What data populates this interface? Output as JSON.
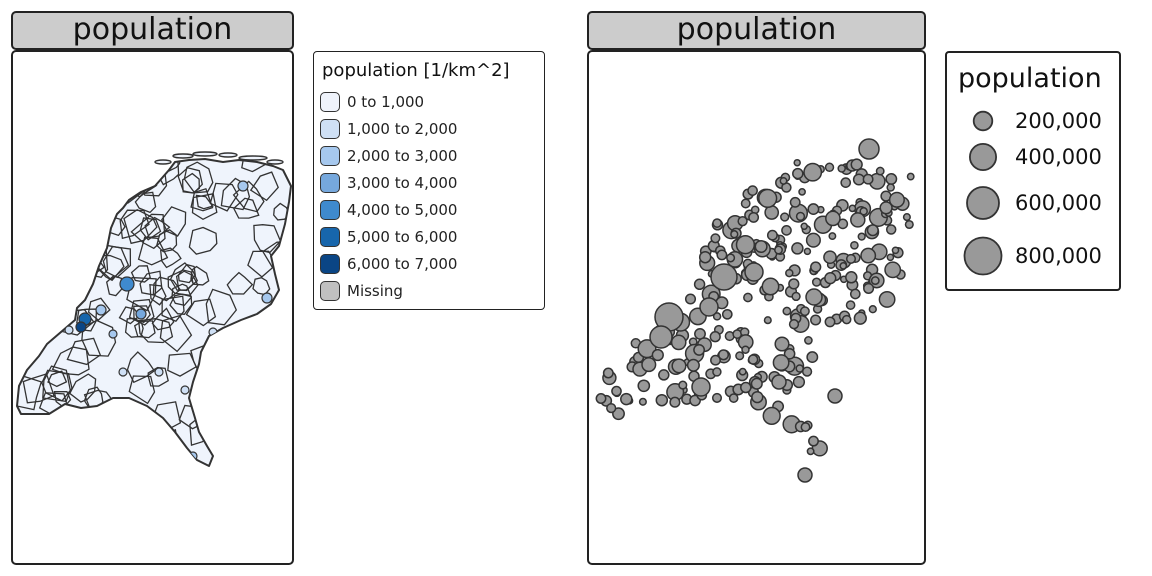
{
  "left_panel": {
    "title": "population",
    "fill_color": "#eff4fc",
    "border_color": "#333333"
  },
  "choropleth_legend": {
    "title": "population [1/km^2]",
    "items": [
      {
        "label": "0 to 1,000",
        "color": "#eff3fb"
      },
      {
        "label": "1,000 to 2,000",
        "color": "#cfe0f5"
      },
      {
        "label": "2,000 to 3,000",
        "color": "#a6c8ee"
      },
      {
        "label": "3,000 to 4,000",
        "color": "#76a8dd"
      },
      {
        "label": "4,000 to 5,000",
        "color": "#3f8ace"
      },
      {
        "label": "5,000 to 6,000",
        "color": "#1766ac"
      },
      {
        "label": "6,000 to 7,000",
        "color": "#0a4585"
      },
      {
        "label": "Missing",
        "color": "#c0c0c0"
      }
    ]
  },
  "right_panel": {
    "title": "population",
    "bubble_color": "#999999",
    "bubble_stroke": "#333333"
  },
  "bubble_legend": {
    "title": "population",
    "items": [
      {
        "label": "200,000",
        "value": 200000
      },
      {
        "label": "400,000",
        "value": 400000
      },
      {
        "label": "600,000",
        "value": 600000
      },
      {
        "label": "800,000",
        "value": 800000
      }
    ]
  }
}
